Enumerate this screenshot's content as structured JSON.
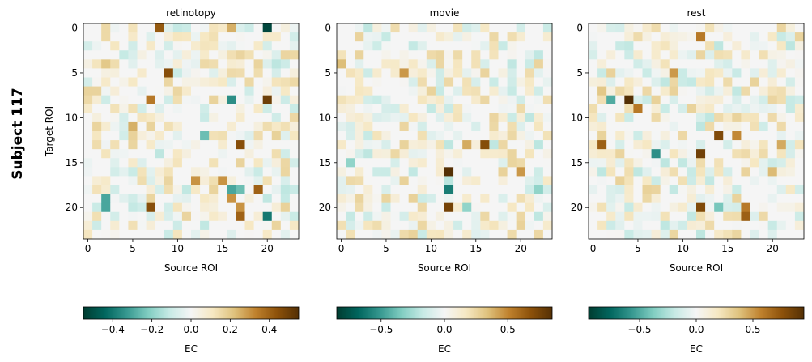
{
  "figure": {
    "suptitle": "Subject 117"
  },
  "chart_data": {
    "type": "heatmap",
    "grid_size": 24,
    "colormap": "BrBG_r",
    "panels": [
      {
        "title": "retinotopy",
        "xlabel": "Source ROI",
        "ylabel": "Target ROI",
        "x_ticks": [
          "0",
          "5",
          "10",
          "15",
          "20"
        ],
        "y_ticks": [
          "0",
          "5",
          "10",
          "15",
          "20"
        ],
        "vlim": [
          -0.55,
          0.55
        ],
        "colorbar": {
          "label": "EC",
          "ticks": [
            "−0.4",
            "−0.2",
            "0.0",
            "0.2",
            "0.4"
          ],
          "tick_values": [
            -0.4,
            -0.2,
            0.0,
            0.2,
            0.4
          ]
        },
        "strong_cells": [
          {
            "row": 0,
            "col": 8,
            "value": 0.42
          },
          {
            "row": 0,
            "col": 20,
            "value": -0.52
          },
          {
            "row": 0,
            "col": 16,
            "value": 0.25
          },
          {
            "row": 4,
            "col": 2,
            "value": 0.2
          },
          {
            "row": 5,
            "col": 9,
            "value": 0.45
          },
          {
            "row": 8,
            "col": 7,
            "value": 0.35
          },
          {
            "row": 8,
            "col": 16,
            "value": -0.35
          },
          {
            "row": 8,
            "col": 20,
            "value": 0.5
          },
          {
            "row": 11,
            "col": 5,
            "value": 0.25
          },
          {
            "row": 12,
            "col": 13,
            "value": -0.25
          },
          {
            "row": 13,
            "col": 17,
            "value": 0.45
          },
          {
            "row": 17,
            "col": 12,
            "value": 0.3
          },
          {
            "row": 17,
            "col": 15,
            "value": 0.3
          },
          {
            "row": 18,
            "col": 16,
            "value": -0.3
          },
          {
            "row": 18,
            "col": 17,
            "value": -0.25
          },
          {
            "row": 18,
            "col": 19,
            "value": 0.4
          },
          {
            "row": 19,
            "col": 2,
            "value": -0.3
          },
          {
            "row": 19,
            "col": 16,
            "value": 0.3
          },
          {
            "row": 20,
            "col": 2,
            "value": -0.3
          },
          {
            "row": 20,
            "col": 7,
            "value": 0.45
          },
          {
            "row": 20,
            "col": 17,
            "value": 0.3
          },
          {
            "row": 21,
            "col": 17,
            "value": 0.4
          },
          {
            "row": 21,
            "col": 20,
            "value": -0.4
          }
        ]
      },
      {
        "title": "movie",
        "xlabel": "Source ROI",
        "ylabel": "",
        "x_ticks": [
          "0",
          "5",
          "10",
          "15",
          "20"
        ],
        "y_ticks": [
          "0",
          "5",
          "10",
          "15",
          "20"
        ],
        "vlim": [
          -0.85,
          0.85
        ],
        "colorbar": {
          "label": "EC",
          "ticks": [
            "−0.5",
            "0.0",
            "0.5"
          ],
          "tick_values": [
            -0.5,
            0.0,
            0.5
          ]
        },
        "strong_cells": [
          {
            "row": 4,
            "col": 0,
            "value": 0.35
          },
          {
            "row": 5,
            "col": 7,
            "value": 0.45
          },
          {
            "row": 13,
            "col": 16,
            "value": 0.7
          },
          {
            "row": 16,
            "col": 12,
            "value": 0.85
          },
          {
            "row": 18,
            "col": 12,
            "value": -0.6
          },
          {
            "row": 20,
            "col": 12,
            "value": 0.75
          },
          {
            "row": 20,
            "col": 14,
            "value": -0.3
          },
          {
            "row": 15,
            "col": 1,
            "value": -0.3
          },
          {
            "row": 17,
            "col": 12,
            "value": -0.2
          },
          {
            "row": 13,
            "col": 14,
            "value": 0.4
          },
          {
            "row": 18,
            "col": 22,
            "value": -0.3
          },
          {
            "row": 16,
            "col": 20,
            "value": 0.45
          }
        ]
      },
      {
        "title": "rest",
        "xlabel": "Source ROI",
        "ylabel": "",
        "x_ticks": [
          "0",
          "5",
          "10",
          "15",
          "20"
        ],
        "y_ticks": [
          "0",
          "5",
          "10",
          "15",
          "20"
        ],
        "vlim": [
          -0.95,
          0.95
        ],
        "colorbar": {
          "label": "EC",
          "ticks": [
            "−0.5",
            "0.0",
            "0.5"
          ],
          "tick_values": [
            -0.5,
            0.0,
            0.5
          ]
        },
        "strong_cells": [
          {
            "row": 1,
            "col": 12,
            "value": 0.6
          },
          {
            "row": 5,
            "col": 9,
            "value": 0.5
          },
          {
            "row": 7,
            "col": 1,
            "value": 0.35
          },
          {
            "row": 8,
            "col": 2,
            "value": -0.5
          },
          {
            "row": 8,
            "col": 4,
            "value": 0.95
          },
          {
            "row": 9,
            "col": 5,
            "value": 0.6
          },
          {
            "row": 12,
            "col": 14,
            "value": 0.8
          },
          {
            "row": 13,
            "col": 1,
            "value": 0.7
          },
          {
            "row": 14,
            "col": 7,
            "value": -0.6
          },
          {
            "row": 14,
            "col": 12,
            "value": 0.85
          },
          {
            "row": 20,
            "col": 12,
            "value": 0.8
          },
          {
            "row": 20,
            "col": 14,
            "value": -0.4
          },
          {
            "row": 21,
            "col": 17,
            "value": 0.7
          },
          {
            "row": 20,
            "col": 17,
            "value": 0.6
          },
          {
            "row": 12,
            "col": 16,
            "value": 0.55
          },
          {
            "row": 13,
            "col": 21,
            "value": 0.45
          },
          {
            "row": 16,
            "col": 20,
            "value": 0.4
          }
        ]
      }
    ]
  }
}
